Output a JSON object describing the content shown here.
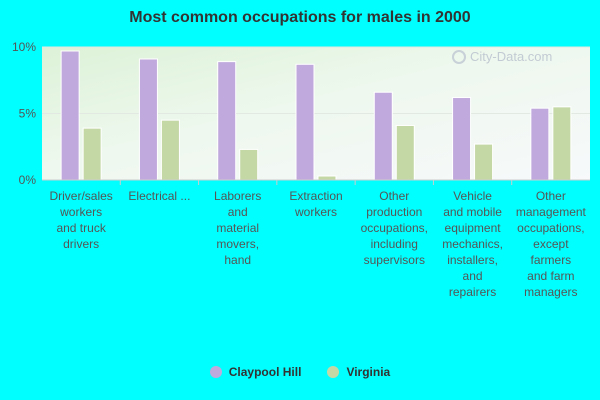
{
  "chart_data": {
    "type": "bar",
    "title": "Most common occupations for males in 2000",
    "xlabel": "",
    "ylabel": "",
    "ylim": [
      0,
      10
    ],
    "yticks": [
      {
        "value": 0,
        "label": "0%"
      },
      {
        "value": 5,
        "label": "5%"
      },
      {
        "value": 10,
        "label": "10%"
      }
    ],
    "categories": [
      "Driver/sales workers and truck drivers",
      "Electrical ...",
      "Laborers and material movers, hand",
      "Extraction workers",
      "Other production occupations, including supervisors",
      "Vehicle and mobile equipment mechanics, installers, and repairers",
      "Other management occupations, except farmers and farm managers"
    ],
    "series": [
      {
        "name": "Claypool Hill",
        "color": "#c0a9dc",
        "values": [
          9.7,
          9.1,
          8.9,
          8.7,
          6.6,
          6.2,
          5.4
        ]
      },
      {
        "name": "Virginia",
        "color": "#c4d8a6",
        "values": [
          3.9,
          4.5,
          2.3,
          0.3,
          4.1,
          2.7,
          5.5
        ]
      }
    ],
    "grid": true,
    "legend_position": "bottom-center"
  },
  "watermark": "City-Data.com"
}
